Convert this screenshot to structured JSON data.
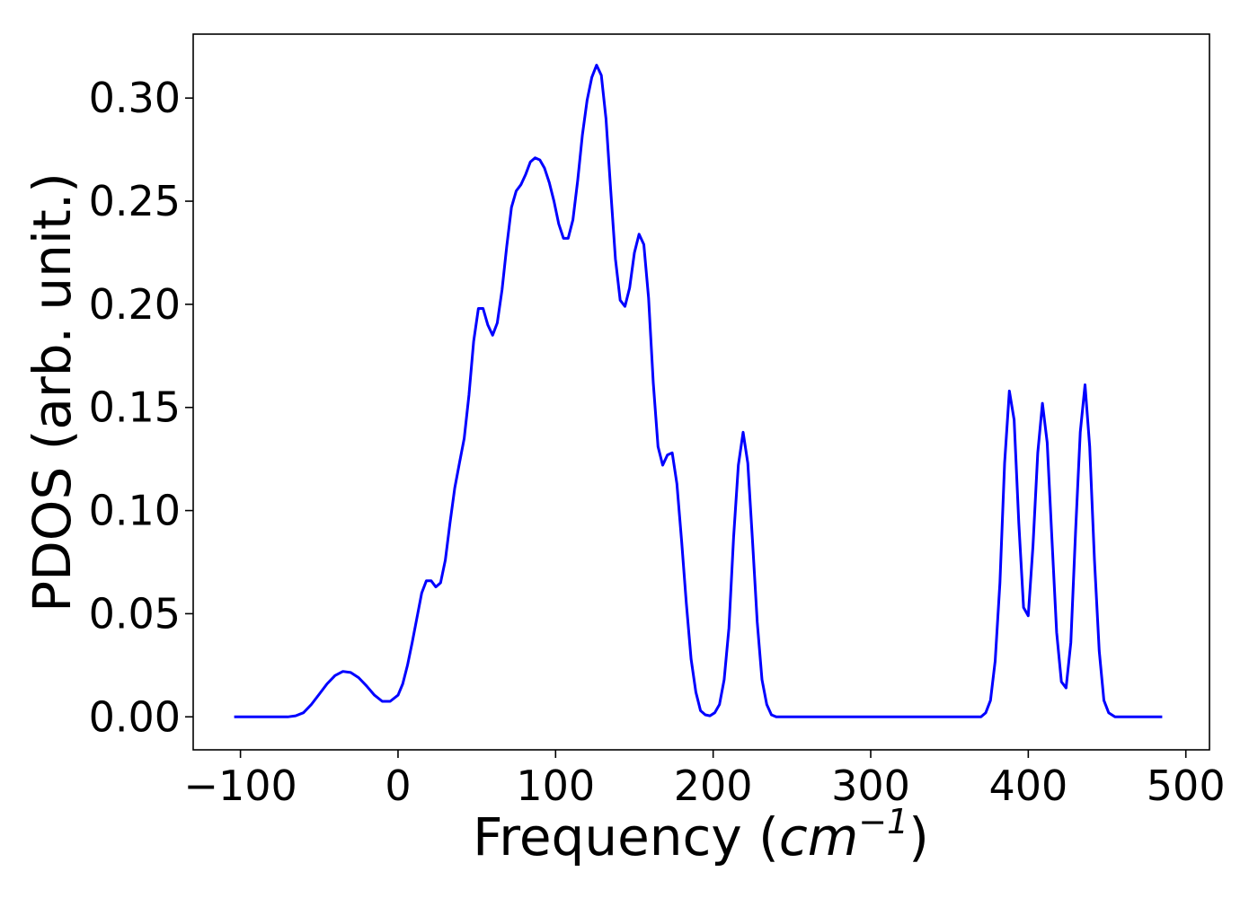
{
  "chart_data": {
    "type": "line",
    "title": "",
    "xlabel": "Frequency",
    "xlabel_unit_base": "cm",
    "xlabel_unit_exp": "−1",
    "ylabel": "PDOS (arb. unit.)",
    "xlim": [
      -130,
      515
    ],
    "ylim": [
      -0.016,
      0.331
    ],
    "x_ticks": [
      -100,
      0,
      100,
      200,
      300,
      400,
      500
    ],
    "x_tick_labels": [
      "−100",
      "0",
      "100",
      "200",
      "300",
      "400",
      "500"
    ],
    "y_ticks": [
      0.0,
      0.05,
      0.1,
      0.15,
      0.2,
      0.25,
      0.3
    ],
    "y_tick_labels": [
      "0.00",
      "0.05",
      "0.10",
      "0.15",
      "0.20",
      "0.25",
      "0.30"
    ],
    "grid": false,
    "line_color": "#0000ff",
    "series": [
      {
        "x": [
          -104,
          -70,
          -65,
          -60,
          -55,
          -50,
          -45,
          -40,
          -35,
          -30,
          -25,
          -20,
          -15,
          -10,
          -5,
          0,
          3,
          6,
          9,
          12,
          15,
          18,
          21,
          24,
          27,
          30,
          33,
          36,
          39,
          42,
          45,
          48,
          51,
          54,
          57,
          60,
          63,
          66,
          69,
          72,
          75,
          78,
          81,
          84,
          87,
          90,
          93,
          96,
          99,
          102,
          105,
          108,
          111,
          114,
          117,
          120,
          123,
          126,
          129,
          132,
          135,
          138,
          141,
          144,
          147,
          150,
          153,
          156,
          159,
          162,
          165,
          168,
          171,
          174,
          177,
          180,
          183,
          186,
          189,
          192,
          195,
          198,
          201,
          204,
          207,
          210,
          213,
          216,
          219,
          222,
          225,
          228,
          231,
          234,
          237,
          240,
          245,
          370,
          373,
          376,
          379,
          382,
          385,
          388,
          391,
          394,
          397,
          400,
          403,
          406,
          409,
          412,
          415,
          418,
          421,
          424,
          427,
          430,
          433,
          436,
          439,
          442,
          445,
          448,
          451,
          455,
          485
        ],
        "y": [
          0.0,
          0.0,
          0.0005,
          0.002,
          0.006,
          0.011,
          0.016,
          0.02,
          0.022,
          0.0215,
          0.019,
          0.015,
          0.0105,
          0.0075,
          0.0075,
          0.0105,
          0.016,
          0.025,
          0.036,
          0.048,
          0.06,
          0.066,
          0.066,
          0.063,
          0.065,
          0.076,
          0.094,
          0.111,
          0.123,
          0.135,
          0.156,
          0.182,
          0.198,
          0.198,
          0.19,
          0.185,
          0.191,
          0.207,
          0.228,
          0.247,
          0.255,
          0.258,
          0.263,
          0.269,
          0.271,
          0.27,
          0.266,
          0.259,
          0.25,
          0.239,
          0.232,
          0.232,
          0.241,
          0.26,
          0.282,
          0.299,
          0.31,
          0.316,
          0.311,
          0.29,
          0.255,
          0.222,
          0.202,
          0.199,
          0.208,
          0.225,
          0.234,
          0.229,
          0.203,
          0.162,
          0.131,
          0.122,
          0.127,
          0.128,
          0.113,
          0.085,
          0.055,
          0.028,
          0.012,
          0.003,
          0.001,
          0.0005,
          0.002,
          0.006,
          0.018,
          0.043,
          0.087,
          0.122,
          0.138,
          0.123,
          0.085,
          0.046,
          0.018,
          0.006,
          0.001,
          0.0,
          0.0,
          0.0,
          0.002,
          0.008,
          0.027,
          0.065,
          0.123,
          0.158,
          0.144,
          0.094,
          0.053,
          0.049,
          0.083,
          0.128,
          0.152,
          0.133,
          0.086,
          0.041,
          0.017,
          0.014,
          0.036,
          0.09,
          0.138,
          0.161,
          0.131,
          0.076,
          0.032,
          0.008,
          0.002,
          0.0,
          0.0
        ]
      }
    ]
  }
}
